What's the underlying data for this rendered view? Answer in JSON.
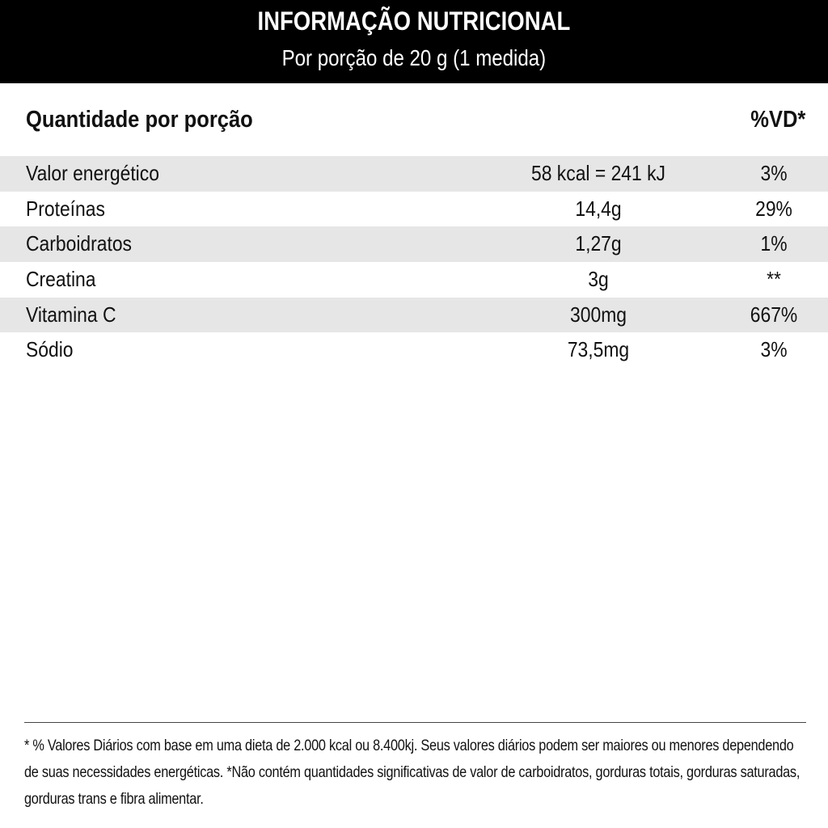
{
  "header": {
    "title": "INFORMAÇÃO NUTRICIONAL",
    "subtitle": "Por porção de 20 g (1 medida)"
  },
  "columns": {
    "quantity": "Quantidade por porção",
    "vd": "%VD*"
  },
  "rows": [
    {
      "name": "Valor energético",
      "value": "58 kcal = 241 kJ",
      "vd": "3%"
    },
    {
      "name": "Proteínas",
      "value": "14,4g",
      "vd": "29%"
    },
    {
      "name": "Carboidratos",
      "value": "1,27g",
      "vd": "1%"
    },
    {
      "name": "Creatina",
      "value": "3g",
      "vd": "**"
    },
    {
      "name": "Vitamina C",
      "value": "300mg",
      "vd": "667%"
    },
    {
      "name": "Sódio",
      "value": "73,5mg",
      "vd": "3%"
    }
  ],
  "footnote": "* % Valores Diários com base em uma dieta de 2.000 kcal ou 8.400kj. Seus valores diários podem ser maiores ou menores dependendo de suas necessidades energéticas. *Não contém quantidades significativas de valor de carboidratos, gorduras totais, gorduras saturadas, gorduras trans e fibra alimentar."
}
